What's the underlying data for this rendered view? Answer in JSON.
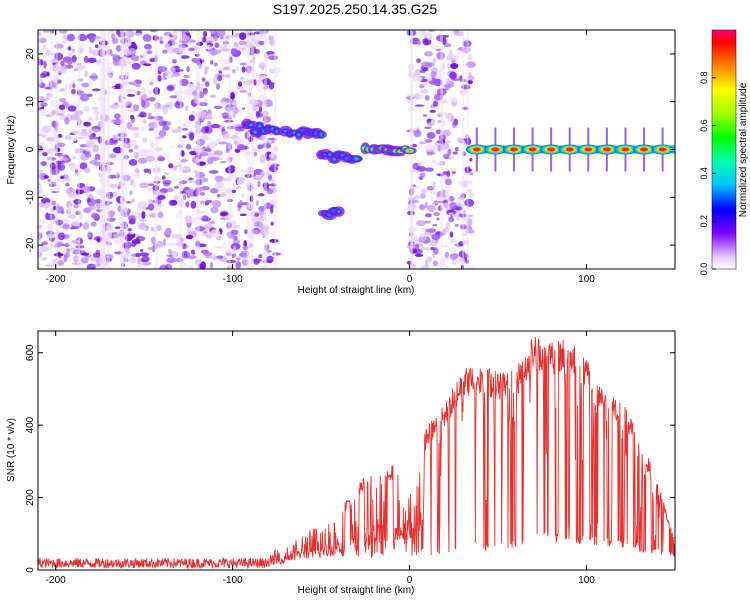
{
  "title": "S197.2025.250.14.35.G25",
  "colors": {
    "snr_line": "#e83030",
    "axis": "#000000",
    "background": "#ffffff"
  },
  "chart_data": [
    {
      "type": "heatmap",
      "title": "S197.2025.250.14.35.G25",
      "xlabel": "Height of straight line (km)",
      "ylabel": "Frequency (Hz)",
      "xlim": [
        -210,
        150
      ],
      "ylim": [
        -25,
        25
      ],
      "xticks": [
        -200,
        -100,
        0,
        100
      ],
      "yticks": [
        -20,
        -10,
        0,
        10,
        20
      ],
      "xtick_labels": [
        "-200",
        "-100",
        "0",
        "100"
      ],
      "ytick_labels": [
        "-20",
        "-10",
        "0",
        "10",
        "20"
      ],
      "colorbar": {
        "label": "Normalized spectral amplitude",
        "range": [
          0,
          1
        ],
        "ticks": [
          0.0,
          0.2,
          0.4,
          0.6,
          0.8
        ],
        "tick_labels": [
          "0.0",
          "0.2",
          "0.4",
          "0.6",
          "0.8"
        ]
      },
      "features": [
        {
          "name": "noise-region",
          "x_range": [
            -210,
            -75
          ],
          "freq_range": [
            -25,
            25
          ],
          "amplitude": 0.1
        },
        {
          "name": "noise-region",
          "x_range": [
            0,
            35
          ],
          "freq_range": [
            -25,
            25
          ],
          "amplitude": 0.1
        },
        {
          "name": "reflection",
          "x_range": [
            -92,
            -75
          ],
          "freq_range": [
            2,
            7
          ],
          "amplitude": 0.3
        },
        {
          "name": "reflection",
          "x_range": [
            -70,
            -50
          ],
          "freq_range": [
            2,
            5
          ],
          "amplitude": 0.3
        },
        {
          "name": "reflection",
          "x_range": [
            -50,
            -30
          ],
          "freq_range": [
            -3,
            0
          ],
          "amplitude": 0.25
        },
        {
          "name": "reflection",
          "x_range": [
            -48,
            -40
          ],
          "freq_range": [
            -17,
            -11
          ],
          "amplitude": 0.2
        },
        {
          "name": "reflection",
          "x_range": [
            -25,
            0
          ],
          "freq_range": [
            -1,
            1
          ],
          "amplitude": 0.9
        },
        {
          "name": "direct-signal",
          "x_range": [
            35,
            150
          ],
          "freq_range": [
            -1,
            1
          ],
          "amplitude": 1.0
        }
      ]
    },
    {
      "type": "line",
      "xlabel": "Height of straight line (km)",
      "ylabel": "SNR (10 * v/v)",
      "xlim": [
        -210,
        150
      ],
      "ylim": [
        0,
        660
      ],
      "xticks": [
        -200,
        -100,
        0,
        100
      ],
      "yticks": [
        0,
        200,
        400,
        600
      ],
      "xtick_labels": [
        "-200",
        "-100",
        "0",
        "100"
      ],
      "ytick_labels": [
        "0",
        "200",
        "400",
        "600"
      ],
      "series": [
        {
          "name": "SNR",
          "x": [
            -210,
            -150,
            -100,
            -80,
            -70,
            -60,
            -50,
            -40,
            -30,
            -20,
            -10,
            0,
            10,
            20,
            30,
            40,
            50,
            60,
            70,
            80,
            90,
            100,
            110,
            120,
            130,
            140,
            150
          ],
          "envelope": [
            28,
            28,
            30,
            45,
            80,
            110,
            140,
            170,
            230,
            300,
            290,
            300,
            400,
            460,
            560,
            570,
            550,
            560,
            650,
            640,
            640,
            580,
            510,
            470,
            370,
            250,
            80
          ],
          "floor": [
            5,
            5,
            5,
            10,
            20,
            30,
            30,
            40,
            30,
            35,
            40,
            40,
            30,
            40,
            45,
            50,
            50,
            55,
            70,
            80,
            75,
            70,
            65,
            60,
            50,
            50,
            40
          ],
          "spike_x": [
            -35,
            -27,
            -11,
            10,
            14,
            20,
            24,
            28,
            32,
            35,
            40,
            46,
            50,
            54,
            62,
            66,
            70,
            74,
            80,
            86,
            92,
            100,
            108,
            116,
            125,
            135,
            145
          ]
        }
      ]
    }
  ]
}
